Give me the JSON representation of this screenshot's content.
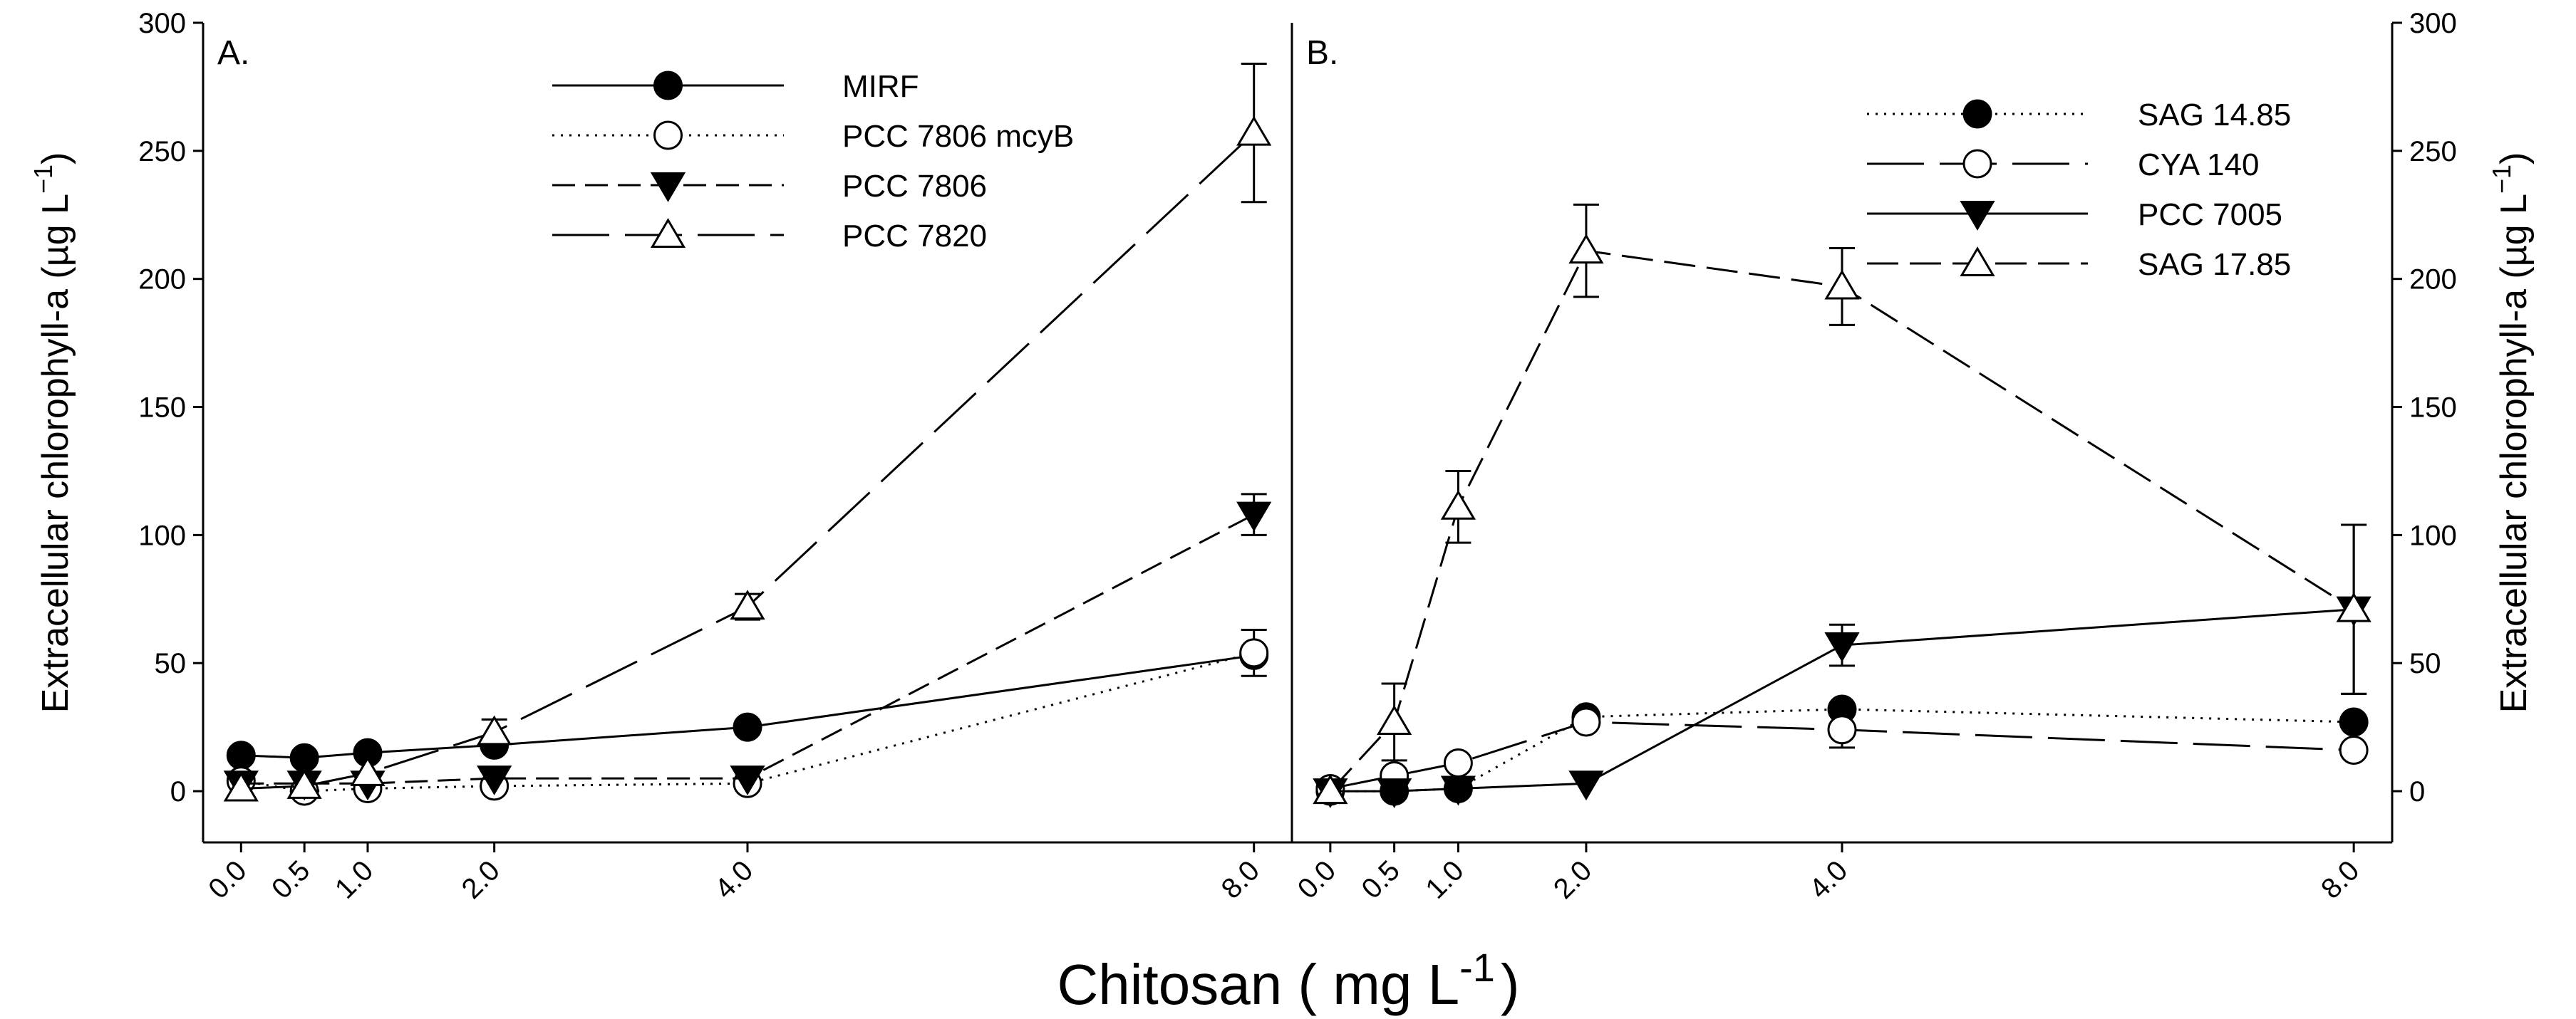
{
  "figure": {
    "x_axis_title": "Chitosan ( mg L",
    "x_axis_title_sup": "-1",
    "x_axis_title_end": ")"
  },
  "chart_data": [
    {
      "type": "line",
      "panel_label": "A.",
      "ylabel": "Extracellular chlorophyll-a (µg L",
      "ylabel_sup": "−1",
      "ylabel_end": ")",
      "y_axis_side": "left",
      "x": [
        0.0,
        0.5,
        1.0,
        2.0,
        4.0,
        8.0
      ],
      "x_tick_labels": [
        "0.0",
        "0.5",
        "1.0",
        "2.0",
        "4.0",
        "8.0"
      ],
      "xlim": [
        -0.3,
        8.3
      ],
      "ylim": [
        -20,
        300
      ],
      "y_ticks": [
        0,
        50,
        100,
        150,
        200,
        250,
        300
      ],
      "legend_position": "top-center",
      "series": [
        {
          "name": "MIRF",
          "marker": "circle-filled",
          "line": "solid",
          "values": [
            14,
            13,
            15,
            18,
            25,
            53
          ],
          "errors": [
            0,
            0,
            0,
            0,
            0,
            0
          ]
        },
        {
          "name": "PCC 7806 mcyB",
          "marker": "circle-open",
          "line": "dotted",
          "values": [
            4,
            0,
            1,
            2,
            3,
            54
          ],
          "errors": [
            0,
            0,
            0,
            0,
            0,
            9
          ]
        },
        {
          "name": "PCC 7806",
          "marker": "triangle-down-filled",
          "line": "short-dash",
          "values": [
            3,
            3,
            3,
            5,
            5,
            108
          ],
          "errors": [
            0,
            0,
            0,
            0,
            0,
            8
          ]
        },
        {
          "name": "PCC 7820",
          "marker": "triangle-up-open",
          "line": "long-dash",
          "values": [
            1,
            2,
            7,
            23,
            72,
            257
          ],
          "errors": [
            0,
            0,
            0,
            5,
            5,
            27
          ]
        }
      ]
    },
    {
      "type": "line",
      "panel_label": "B.",
      "ylabel": "Extracellular chlorophyll-a (µg L",
      "ylabel_sup": "−1",
      "ylabel_end": ")",
      "y_axis_side": "right",
      "x": [
        0.0,
        0.5,
        1.0,
        2.0,
        4.0,
        8.0
      ],
      "x_tick_labels": [
        "0.0",
        "0.5",
        "1.0",
        "2.0",
        "4.0",
        "8.0"
      ],
      "xlim": [
        -0.3,
        8.3
      ],
      "ylim": [
        -20,
        300
      ],
      "y_ticks": [
        0,
        50,
        100,
        150,
        200,
        250,
        300
      ],
      "legend_position": "top-right",
      "series": [
        {
          "name": "SAG 14.85",
          "marker": "circle-filled",
          "line": "dotted",
          "values": [
            0,
            0,
            1,
            29,
            32,
            27
          ],
          "errors": [
            0,
            0,
            0,
            0,
            0,
            0
          ]
        },
        {
          "name": "CYA 140",
          "marker": "circle-open",
          "line": "long-dash",
          "values": [
            1,
            6,
            11,
            27,
            24,
            16
          ],
          "errors": [
            0,
            0,
            0,
            0,
            7,
            0
          ]
        },
        {
          "name": "PCC 7005",
          "marker": "triangle-down-filled",
          "line": "solid",
          "values": [
            0,
            0,
            1,
            3,
            57,
            71
          ],
          "errors": [
            0,
            0,
            0,
            0,
            8,
            33
          ]
        },
        {
          "name": "SAG 17.85",
          "marker": "triangle-up-open",
          "line": "medium-dash",
          "values": [
            0,
            27,
            111,
            211,
            197,
            71
          ],
          "errors": [
            0,
            15,
            14,
            18,
            15,
            33
          ]
        }
      ]
    }
  ]
}
